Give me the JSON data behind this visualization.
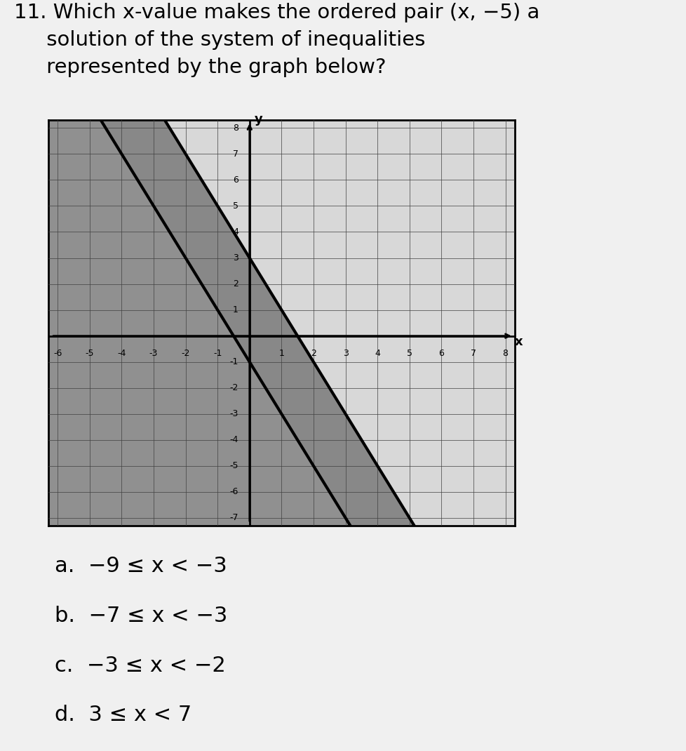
{
  "question_line1": "11. Which x-value makes the ordered pair (x, −5) a",
  "question_line2": "    solution of the system of inequalities",
  "question_line3": "    represented by the graph below?",
  "answer_a": "a.  −9 ≤ x < −3",
  "answer_b": "b.  −7 ≤ x < −3",
  "answer_c": "c.  −3 ≤ x < −2",
  "answer_d": "d.  3 ≤ x < 7",
  "xmin": -6,
  "xmax": 8,
  "ymin": -7,
  "ymax": 8,
  "graph_bg": "#b8b8b8",
  "page_bg": "#f0f0f0",
  "grid_color": "#555555",
  "line_color": "#000000",
  "shade_dark": "#909090",
  "shade_light": "#d0d0d0",
  "line1_slope": -2,
  "line1_intercept": 3,
  "line2_slope": -2,
  "line2_intercept": -1
}
